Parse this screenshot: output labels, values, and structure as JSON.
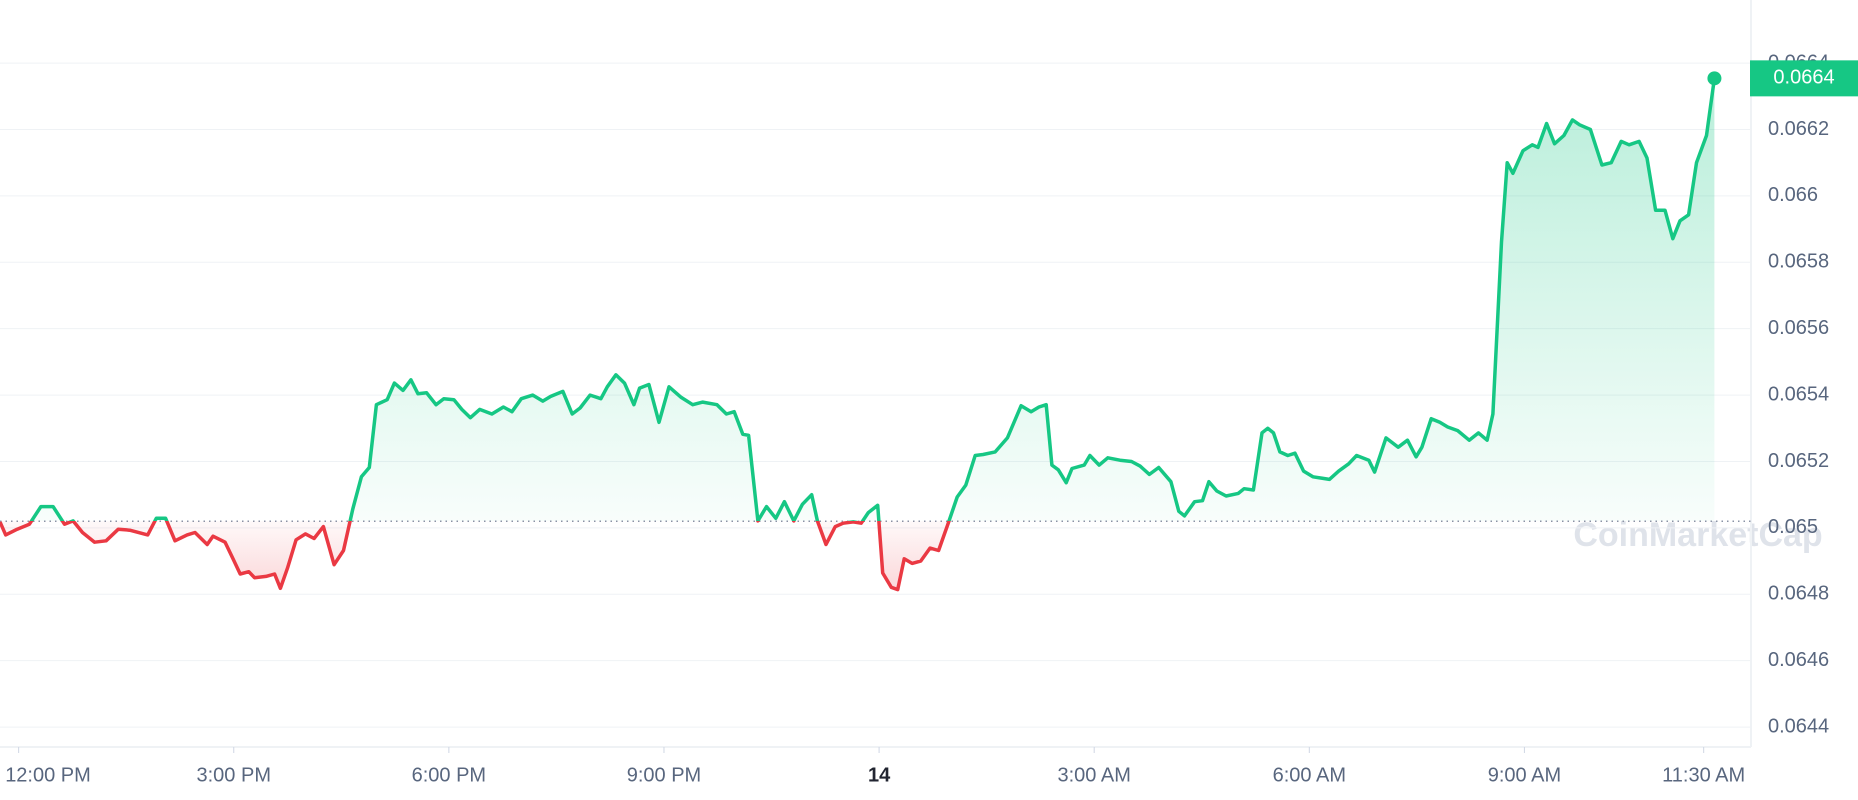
{
  "chart_data": {
    "type": "line",
    "color_up": "#16c784",
    "color_down": "#ea3943",
    "baseline": 0.06502,
    "watermark": "CoinMarketCap",
    "current_price": {
      "value": 0.066354,
      "label": "0.0664"
    },
    "grid": true,
    "xlim": [
      -0.26,
      24.16
    ],
    "ylim": [
      0.06434,
      0.06659
    ],
    "yticks": [
      0.0644,
      0.0646,
      0.0648,
      0.065,
      0.0652,
      0.0654,
      0.0656,
      0.0658,
      0.066,
      0.0662,
      0.0664
    ],
    "xticks": [
      {
        "value": 0,
        "label": "12:00 PM"
      },
      {
        "value": 3,
        "label": "3:00 PM"
      },
      {
        "value": 6,
        "label": "6:00 PM"
      },
      {
        "value": 9,
        "label": "9:00 PM"
      },
      {
        "value": 12,
        "label": "14"
      },
      {
        "value": 15,
        "label": "3:00 AM"
      },
      {
        "value": 18,
        "label": "6:00 AM"
      },
      {
        "value": 21,
        "label": "9:00 AM"
      },
      {
        "value": 23.5,
        "label": "11:30 AM"
      }
    ],
    "x": [
      -0.26,
      -0.18,
      -0.02,
      0.15,
      0.31,
      0.48,
      0.64,
      0.76,
      0.89,
      1.06,
      1.22,
      1.39,
      1.55,
      1.8,
      1.92,
      2.05,
      2.18,
      2.35,
      2.46,
      2.63,
      2.71,
      2.88,
      2.99,
      3.09,
      3.21,
      3.29,
      3.45,
      3.57,
      3.65,
      3.75,
      3.87,
      4.0,
      4.12,
      4.25,
      4.4,
      4.53,
      4.66,
      4.78,
      4.89,
      4.99,
      5.14,
      5.24,
      5.36,
      5.47,
      5.57,
      5.69,
      5.82,
      5.93,
      6.07,
      6.18,
      6.3,
      6.43,
      6.6,
      6.76,
      6.88,
      7.01,
      7.17,
      7.31,
      7.42,
      7.59,
      7.72,
      7.83,
      7.97,
      8.12,
      8.21,
      8.33,
      8.45,
      8.58,
      8.66,
      8.79,
      8.93,
      9.07,
      9.24,
      9.4,
      9.54,
      9.74,
      9.87,
      9.98,
      10.1,
      10.18,
      10.31,
      10.43,
      10.56,
      10.68,
      10.81,
      10.93,
      11.06,
      11.14,
      11.26,
      11.39,
      11.5,
      11.64,
      11.75,
      11.85,
      11.98,
      12.05,
      12.17,
      12.26,
      12.35,
      12.46,
      12.58,
      12.71,
      12.83,
      12.96,
      13.09,
      13.21,
      13.34,
      13.45,
      13.62,
      13.79,
      13.98,
      14.12,
      14.23,
      14.33,
      14.41,
      14.5,
      14.61,
      14.69,
      14.86,
      14.94,
      15.07,
      15.19,
      15.36,
      15.52,
      15.64,
      15.77,
      15.9,
      16.07,
      16.18,
      16.26,
      16.4,
      16.51,
      16.6,
      16.71,
      16.84,
      17.01,
      17.09,
      17.22,
      17.34,
      17.42,
      17.5,
      17.59,
      17.7,
      17.8,
      17.92,
      18.05,
      18.17,
      18.28,
      18.41,
      18.55,
      18.66,
      18.83,
      18.91,
      19.07,
      19.24,
      19.37,
      19.49,
      19.57,
      19.7,
      19.82,
      19.93,
      20.07,
      20.23,
      20.36,
      20.48,
      20.56,
      20.68,
      20.76,
      20.84,
      20.98,
      21.11,
      21.19,
      21.31,
      21.42,
      21.55,
      21.67,
      21.77,
      21.92,
      22.08,
      22.21,
      22.35,
      22.46,
      22.6,
      22.71,
      22.83,
      22.96,
      23.07,
      23.17,
      23.29,
      23.4,
      23.54,
      23.65
    ],
    "values": [
      0.065018,
      0.064979,
      0.064996,
      0.065011,
      0.065064,
      0.065064,
      0.065011,
      0.065021,
      0.064986,
      0.064957,
      0.064961,
      0.064996,
      0.064993,
      0.064979,
      0.065029,
      0.065029,
      0.064961,
      0.064979,
      0.064986,
      0.06495,
      0.064975,
      0.064957,
      0.064907,
      0.064861,
      0.064868,
      0.06485,
      0.064854,
      0.064861,
      0.064818,
      0.064879,
      0.064964,
      0.064982,
      0.064968,
      0.065004,
      0.064889,
      0.064932,
      0.065057,
      0.065154,
      0.065182,
      0.065371,
      0.065386,
      0.065436,
      0.065414,
      0.065446,
      0.065404,
      0.065407,
      0.065371,
      0.065389,
      0.065386,
      0.065357,
      0.065332,
      0.065357,
      0.065343,
      0.065364,
      0.06535,
      0.065389,
      0.0654,
      0.065382,
      0.065396,
      0.065411,
      0.065343,
      0.065361,
      0.0654,
      0.065389,
      0.065425,
      0.065461,
      0.065436,
      0.065371,
      0.065421,
      0.065432,
      0.065318,
      0.065425,
      0.065393,
      0.065371,
      0.065379,
      0.065371,
      0.065343,
      0.06535,
      0.065282,
      0.065279,
      0.065021,
      0.065064,
      0.065029,
      0.065079,
      0.065021,
      0.065071,
      0.0651,
      0.065021,
      0.06495,
      0.065004,
      0.065014,
      0.065018,
      0.065014,
      0.065046,
      0.065068,
      0.064864,
      0.064821,
      0.064814,
      0.064907,
      0.064893,
      0.0649,
      0.064939,
      0.064932,
      0.065011,
      0.065093,
      0.065129,
      0.065218,
      0.065221,
      0.065229,
      0.065271,
      0.065368,
      0.06535,
      0.065364,
      0.065371,
      0.065189,
      0.065175,
      0.065136,
      0.065179,
      0.065189,
      0.065218,
      0.065189,
      0.065211,
      0.065204,
      0.0652,
      0.065186,
      0.065161,
      0.065182,
      0.065139,
      0.06505,
      0.065036,
      0.065079,
      0.065082,
      0.065139,
      0.065111,
      0.065096,
      0.065104,
      0.065118,
      0.065114,
      0.065286,
      0.0653,
      0.065286,
      0.065229,
      0.065218,
      0.065225,
      0.065171,
      0.065154,
      0.06515,
      0.065146,
      0.065171,
      0.065193,
      0.065218,
      0.065204,
      0.065168,
      0.065271,
      0.065243,
      0.065264,
      0.065214,
      0.065243,
      0.065329,
      0.065318,
      0.065304,
      0.065293,
      0.065264,
      0.065286,
      0.065264,
      0.065343,
      0.065861,
      0.0661,
      0.066068,
      0.066136,
      0.066154,
      0.066146,
      0.066218,
      0.066157,
      0.066182,
      0.066229,
      0.066214,
      0.0662,
      0.066093,
      0.0661,
      0.066164,
      0.066154,
      0.066164,
      0.066114,
      0.065957,
      0.065957,
      0.065871,
      0.065925,
      0.065943,
      0.0661,
      0.066182,
      0.066354
    ]
  }
}
